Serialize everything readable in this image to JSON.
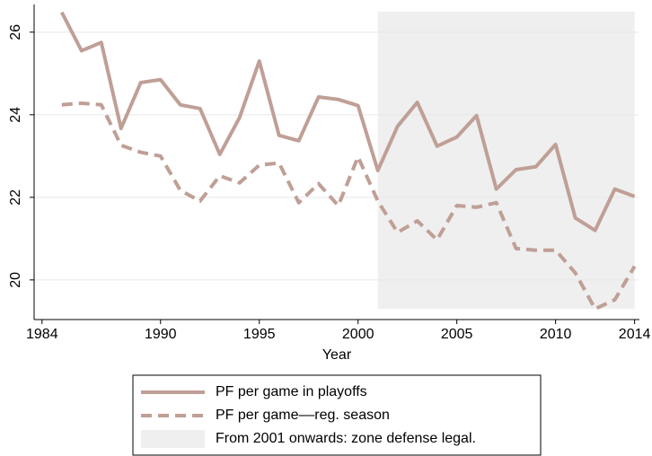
{
  "chart_data": {
    "type": "line",
    "x_label": "Year",
    "x": [
      1985,
      1986,
      1987,
      1988,
      1989,
      1990,
      1991,
      1992,
      1993,
      1994,
      1995,
      1996,
      1997,
      1998,
      1999,
      2000,
      2001,
      2002,
      2003,
      2004,
      2005,
      2006,
      2007,
      2008,
      2009,
      2010,
      2011,
      2012,
      2013,
      2014
    ],
    "series": [
      {
        "name": "PF per game in playoffs",
        "color": "#bf9f96",
        "line_style": "solid",
        "values": [
          26.48,
          25.55,
          25.75,
          23.67,
          24.78,
          24.85,
          24.24,
          24.15,
          23.04,
          23.93,
          25.3,
          23.5,
          23.37,
          24.43,
          24.37,
          24.22,
          22.65,
          23.72,
          24.3,
          23.24,
          23.46,
          23.98,
          22.2,
          22.67,
          22.74,
          23.28,
          21.5,
          21.2,
          22.2,
          22.02
        ]
      },
      {
        "name": "PF per game––reg. season",
        "color": "#bf9f96",
        "line_style": "dashed",
        "values": [
          24.24,
          24.28,
          24.24,
          23.26,
          23.09,
          23.0,
          22.17,
          21.91,
          22.52,
          22.35,
          22.78,
          22.83,
          21.87,
          22.33,
          21.8,
          22.98,
          21.91,
          21.15,
          21.43,
          20.97,
          21.8,
          21.76,
          21.87,
          20.76,
          20.72,
          20.72,
          20.17,
          19.3,
          19.52,
          20.33
        ]
      }
    ],
    "shaded_region": {
      "label": "From 2001 onwards: zone defense legal.",
      "x": [
        2001,
        2014
      ],
      "y": [
        19.3,
        26.5
      ],
      "color": "#efefef"
    },
    "xlim": [
      1983.6,
      2014.2
    ],
    "xticks": [
      1984,
      1990,
      1995,
      2000,
      2005,
      2010,
      2014
    ],
    "ylim": [
      19.04,
      26.67
    ],
    "yticks": [
      20,
      22,
      24,
      26
    ],
    "grid": true
  }
}
